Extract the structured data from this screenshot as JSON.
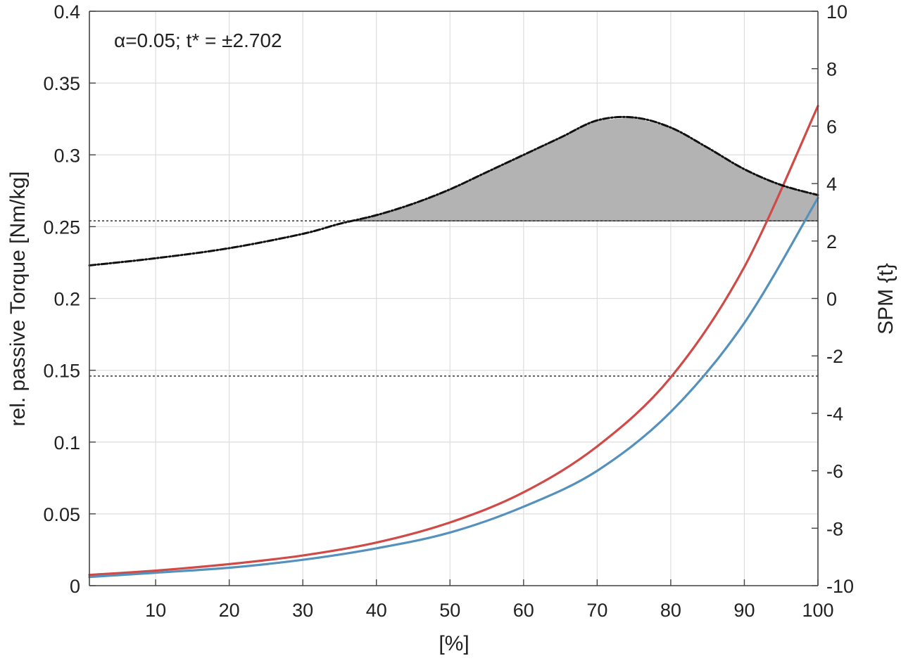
{
  "chart_data": {
    "type": "line",
    "title": "",
    "annotation": "α=0.05; t* = ±2.702",
    "xlabel": "[%]",
    "ylabel_left": "rel. passive Torque [Nm/kg]",
    "ylabel_right": "SPM {t}",
    "xlim": [
      1,
      100
    ],
    "ylim_left": [
      0,
      0.4
    ],
    "ylim_right": [
      -10,
      10
    ],
    "grid": true,
    "x_ticks": [
      10,
      20,
      30,
      40,
      50,
      60,
      70,
      80,
      90,
      100
    ],
    "x_tick_labels": [
      "10",
      "20",
      "30",
      "40",
      "50",
      "60",
      "70",
      "80",
      "90",
      "100"
    ],
    "y_left_ticks": [
      0,
      0.05,
      0.1,
      0.15,
      0.2,
      0.25,
      0.3,
      0.35,
      0.4
    ],
    "y_left_tick_labels": [
      "0",
      "0.05",
      "0.1",
      "0.15",
      "0.2",
      "0.25",
      "0.3",
      "0.35",
      "0.4"
    ],
    "y_right_ticks": [
      -10,
      -8,
      -6,
      -4,
      -2,
      0,
      2,
      4,
      6,
      8,
      10
    ],
    "y_right_tick_labels": [
      "-10",
      "-8",
      "-6",
      "-4",
      "-2",
      "0",
      "2",
      "4",
      "6",
      "8",
      "10"
    ],
    "threshold": 2.702,
    "colors": {
      "red_series": "#d04a47",
      "blue_series": "#5591bd",
      "spm_curve": "#111111",
      "cluster_fill": "#b3b3b3",
      "grid": "#dddddd",
      "axes": "#444444"
    },
    "series": [
      {
        "axis": "left",
        "color": "#d04a47",
        "x": [
          1,
          10,
          20,
          30,
          40,
          50,
          60,
          70,
          80,
          90,
          100
        ],
        "values": [
          0.0075,
          0.0105,
          0.015,
          0.021,
          0.03,
          0.044,
          0.065,
          0.097,
          0.145,
          0.222,
          0.334
        ]
      },
      {
        "axis": "left",
        "color": "#5591bd",
        "x": [
          1,
          10,
          20,
          30,
          40,
          50,
          60,
          70,
          80,
          90,
          100
        ],
        "values": [
          0.006,
          0.009,
          0.0125,
          0.018,
          0.026,
          0.037,
          0.055,
          0.08,
          0.121,
          0.183,
          0.27
        ]
      },
      {
        "axis": "right",
        "color": "#111111",
        "style": "dashdot",
        "x": [
          1,
          10,
          20,
          30,
          35,
          40,
          45,
          50,
          55,
          60,
          65,
          70,
          75,
          80,
          85,
          90,
          95,
          100
        ],
        "values": [
          1.15,
          1.4,
          1.75,
          2.25,
          2.6,
          2.9,
          3.3,
          3.8,
          4.4,
          5.0,
          5.6,
          6.2,
          6.3,
          5.95,
          5.25,
          4.5,
          3.95,
          3.6
        ]
      }
    ]
  }
}
